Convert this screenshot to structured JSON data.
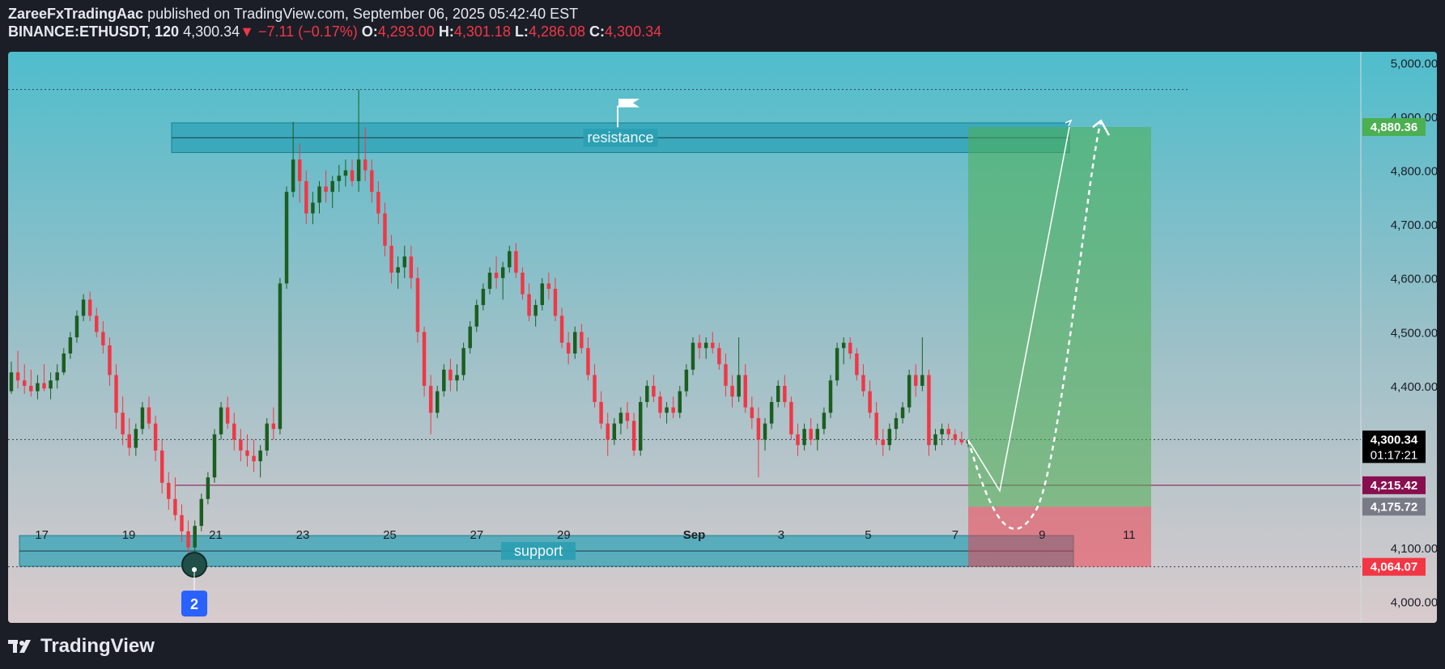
{
  "header": {
    "author": "ZareeFxTradingAac",
    "published": "published on TradingView.com, September 06, 2025 05:42:40 EST",
    "symbol": "BINANCE:ETHUSDT, 120",
    "last": "4,300.34",
    "change": "−7.11 (−0.17%)",
    "o_label": "O:",
    "o": "4,293.00",
    "h_label": "H:",
    "h": "4,301.18",
    "l_label": "L:",
    "l": "4,286.08",
    "c_label": "C:",
    "c": "4,300.34"
  },
  "footer": {
    "brand": "TradingView",
    "logo_icon": "tradingview-logo-icon"
  },
  "chart_data": {
    "type": "candlestick",
    "x_ticks": [
      "17",
      "19",
      "21",
      "23",
      "25",
      "27",
      "29",
      "Sep",
      "3",
      "5",
      "7",
      "9",
      "11"
    ],
    "y_ticks": [
      "5,000.00",
      "4,900.00",
      "4,800.00",
      "4,700.00",
      "4,600.00",
      "4,500.00",
      "4,400.00",
      "4,100.00",
      "4,000.00"
    ],
    "ylim": [
      3960,
      5020
    ],
    "price_labels": [
      {
        "value": 4880.36,
        "text": "4,880.36",
        "color": "#4caf50"
      },
      {
        "value": 4300.34,
        "text": "4,300.34",
        "sub": "01:17:21",
        "color": "#000000"
      },
      {
        "value": 4215.42,
        "text": "4,215.42",
        "color": "#880e4f"
      },
      {
        "value": 4175.72,
        "text": "4,175.72",
        "color": "#787b86"
      },
      {
        "value": 4064.07,
        "text": "4,064.07",
        "color": "#f23645"
      }
    ],
    "zones": [
      {
        "label": "resistance",
        "low": 4833,
        "high": 4888
      },
      {
        "label": "support",
        "low": 4065,
        "high": 4122
      }
    ],
    "position": {
      "entry": 4175.72,
      "target": 4880.36,
      "stop": 4064.07
    },
    "marker": {
      "text": "2",
      "price": 4068
    },
    "up_color": "#1b5e20",
    "down_color": "#f23645",
    "candles": [
      [
        4390,
        4445,
        4385,
        4425
      ],
      [
        4425,
        4465,
        4395,
        4410
      ],
      [
        4410,
        4440,
        4385,
        4400
      ],
      [
        4400,
        4430,
        4380,
        4390
      ],
      [
        4390,
        4420,
        4375,
        4405
      ],
      [
        4405,
        4440,
        4390,
        4395
      ],
      [
        4395,
        4425,
        4375,
        4410
      ],
      [
        4410,
        4440,
        4395,
        4425
      ],
      [
        4425,
        4470,
        4420,
        4460
      ],
      [
        4460,
        4500,
        4450,
        4490
      ],
      [
        4490,
        4540,
        4480,
        4530
      ],
      [
        4530,
        4570,
        4520,
        4560
      ],
      [
        4560,
        4575,
        4520,
        4530
      ],
      [
        4530,
        4545,
        4490,
        4500
      ],
      [
        4500,
        4520,
        4460,
        4475
      ],
      [
        4475,
        4490,
        4400,
        4420
      ],
      [
        4420,
        4440,
        4320,
        4350
      ],
      [
        4350,
        4380,
        4290,
        4310
      ],
      [
        4310,
        4340,
        4270,
        4285
      ],
      [
        4285,
        4330,
        4270,
        4320
      ],
      [
        4320,
        4370,
        4310,
        4360
      ],
      [
        4360,
        4380,
        4320,
        4330
      ],
      [
        4330,
        4345,
        4260,
        4280
      ],
      [
        4280,
        4300,
        4200,
        4220
      ],
      [
        4220,
        4240,
        4170,
        4190
      ],
      [
        4190,
        4230,
        4150,
        4160
      ],
      [
        4160,
        4180,
        4110,
        4130
      ],
      [
        4130,
        4150,
        4070,
        4100
      ],
      [
        4100,
        4150,
        4090,
        4140
      ],
      [
        4140,
        4200,
        4130,
        4190
      ],
      [
        4190,
        4240,
        4180,
        4230
      ],
      [
        4230,
        4320,
        4220,
        4310
      ],
      [
        4310,
        4370,
        4300,
        4360
      ],
      [
        4360,
        4380,
        4320,
        4330
      ],
      [
        4330,
        4350,
        4280,
        4300
      ],
      [
        4300,
        4320,
        4260,
        4280
      ],
      [
        4280,
        4310,
        4250,
        4270
      ],
      [
        4270,
        4300,
        4240,
        4260
      ],
      [
        4260,
        4290,
        4230,
        4280
      ],
      [
        4280,
        4340,
        4270,
        4330
      ],
      [
        4330,
        4360,
        4300,
        4320
      ],
      [
        4320,
        4600,
        4310,
        4590
      ],
      [
        4590,
        4770,
        4580,
        4760
      ],
      [
        4760,
        4890,
        4750,
        4820
      ],
      [
        4820,
        4850,
        4740,
        4780
      ],
      [
        4780,
        4800,
        4700,
        4720
      ],
      [
        4720,
        4760,
        4700,
        4740
      ],
      [
        4740,
        4780,
        4720,
        4770
      ],
      [
        4770,
        4800,
        4740,
        4760
      ],
      [
        4760,
        4790,
        4730,
        4780
      ],
      [
        4780,
        4810,
        4760,
        4790
      ],
      [
        4790,
        4820,
        4770,
        4800
      ],
      [
        4800,
        4820,
        4770,
        4780
      ],
      [
        4780,
        4950,
        4760,
        4820
      ],
      [
        4820,
        4880,
        4780,
        4800
      ],
      [
        4800,
        4820,
        4740,
        4760
      ],
      [
        4760,
        4780,
        4700,
        4720
      ],
      [
        4720,
        4740,
        4640,
        4660
      ],
      [
        4660,
        4680,
        4590,
        4610
      ],
      [
        4610,
        4640,
        4580,
        4620
      ],
      [
        4620,
        4660,
        4600,
        4640
      ],
      [
        4640,
        4660,
        4580,
        4600
      ],
      [
        4600,
        4620,
        4480,
        4500
      ],
      [
        4500,
        4510,
        4380,
        4400
      ],
      [
        4400,
        4420,
        4310,
        4350
      ],
      [
        4350,
        4400,
        4340,
        4390
      ],
      [
        4390,
        4440,
        4380,
        4430
      ],
      [
        4430,
        4450,
        4390,
        4410
      ],
      [
        4410,
        4440,
        4390,
        4420
      ],
      [
        4420,
        4480,
        4410,
        4470
      ],
      [
        4470,
        4520,
        4460,
        4510
      ],
      [
        4510,
        4560,
        4500,
        4550
      ],
      [
        4550,
        4590,
        4540,
        4580
      ],
      [
        4580,
        4620,
        4570,
        4610
      ],
      [
        4610,
        4640,
        4580,
        4600
      ],
      [
        4600,
        4630,
        4560,
        4620
      ],
      [
        4620,
        4660,
        4610,
        4650
      ],
      [
        4650,
        4665,
        4600,
        4610
      ],
      [
        4610,
        4620,
        4560,
        4570
      ],
      [
        4570,
        4590,
        4520,
        4530
      ],
      [
        4530,
        4560,
        4510,
        4550
      ],
      [
        4550,
        4600,
        4540,
        4590
      ],
      [
        4590,
        4610,
        4560,
        4580
      ],
      [
        4580,
        4600,
        4520,
        4530
      ],
      [
        4530,
        4545,
        4470,
        4480
      ],
      [
        4480,
        4500,
        4440,
        4460
      ],
      [
        4460,
        4510,
        4450,
        4500
      ],
      [
        4500,
        4515,
        4460,
        4470
      ],
      [
        4470,
        4490,
        4410,
        4420
      ],
      [
        4420,
        4440,
        4360,
        4370
      ],
      [
        4370,
        4390,
        4320,
        4330
      ],
      [
        4330,
        4350,
        4270,
        4300
      ],
      [
        4300,
        4340,
        4290,
        4330
      ],
      [
        4330,
        4360,
        4310,
        4350
      ],
      [
        4350,
        4370,
        4320,
        4335
      ],
      [
        4335,
        4350,
        4270,
        4280
      ],
      [
        4280,
        4380,
        4270,
        4370
      ],
      [
        4370,
        4410,
        4360,
        4400
      ],
      [
        4400,
        4420,
        4370,
        4380
      ],
      [
        4380,
        4390,
        4340,
        4350
      ],
      [
        4350,
        4370,
        4330,
        4360
      ],
      [
        4360,
        4380,
        4340,
        4350
      ],
      [
        4350,
        4400,
        4340,
        4390
      ],
      [
        4390,
        4440,
        4380,
        4430
      ],
      [
        4430,
        4490,
        4420,
        4480
      ],
      [
        4480,
        4495,
        4450,
        4470
      ],
      [
        4470,
        4490,
        4450,
        4480
      ],
      [
        4480,
        4500,
        4460,
        4470
      ],
      [
        4470,
        4480,
        4430,
        4440
      ],
      [
        4440,
        4460,
        4380,
        4400
      ],
      [
        4400,
        4420,
        4360,
        4380
      ],
      [
        4380,
        4490,
        4370,
        4420
      ],
      [
        4420,
        4440,
        4350,
        4360
      ],
      [
        4360,
        4380,
        4320,
        4340
      ],
      [
        4340,
        4360,
        4230,
        4300
      ],
      [
        4300,
        4340,
        4280,
        4330
      ],
      [
        4330,
        4380,
        4320,
        4370
      ],
      [
        4370,
        4410,
        4360,
        4400
      ],
      [
        4400,
        4420,
        4360,
        4370
      ],
      [
        4370,
        4380,
        4300,
        4310
      ],
      [
        4310,
        4330,
        4270,
        4290
      ],
      [
        4290,
        4330,
        4280,
        4320
      ],
      [
        4320,
        4340,
        4290,
        4300
      ],
      [
        4300,
        4330,
        4280,
        4320
      ],
      [
        4320,
        4360,
        4310,
        4350
      ],
      [
        4350,
        4420,
        4340,
        4410
      ],
      [
        4410,
        4480,
        4400,
        4470
      ],
      [
        4470,
        4490,
        4440,
        4480
      ],
      [
        4480,
        4490,
        4450,
        4460
      ],
      [
        4460,
        4470,
        4410,
        4420
      ],
      [
        4420,
        4440,
        4380,
        4390
      ],
      [
        4390,
        4410,
        4340,
        4350
      ],
      [
        4350,
        4370,
        4290,
        4300
      ],
      [
        4300,
        4320,
        4270,
        4290
      ],
      [
        4290,
        4330,
        4280,
        4320
      ],
      [
        4320,
        4350,
        4300,
        4340
      ],
      [
        4340,
        4370,
        4330,
        4360
      ],
      [
        4360,
        4430,
        4350,
        4420
      ],
      [
        4420,
        4440,
        4380,
        4400
      ],
      [
        4400,
        4490,
        4390,
        4420
      ],
      [
        4420,
        4430,
        4270,
        4290
      ],
      [
        4290,
        4320,
        4280,
        4310
      ],
      [
        4310,
        4330,
        4290,
        4320
      ],
      [
        4320,
        4330,
        4300,
        4310
      ],
      [
        4310,
        4320,
        4290,
        4300
      ],
      [
        4300,
        4315,
        4290,
        4295
      ],
      [
        4293,
        4301,
        4286,
        4300
      ]
    ]
  }
}
